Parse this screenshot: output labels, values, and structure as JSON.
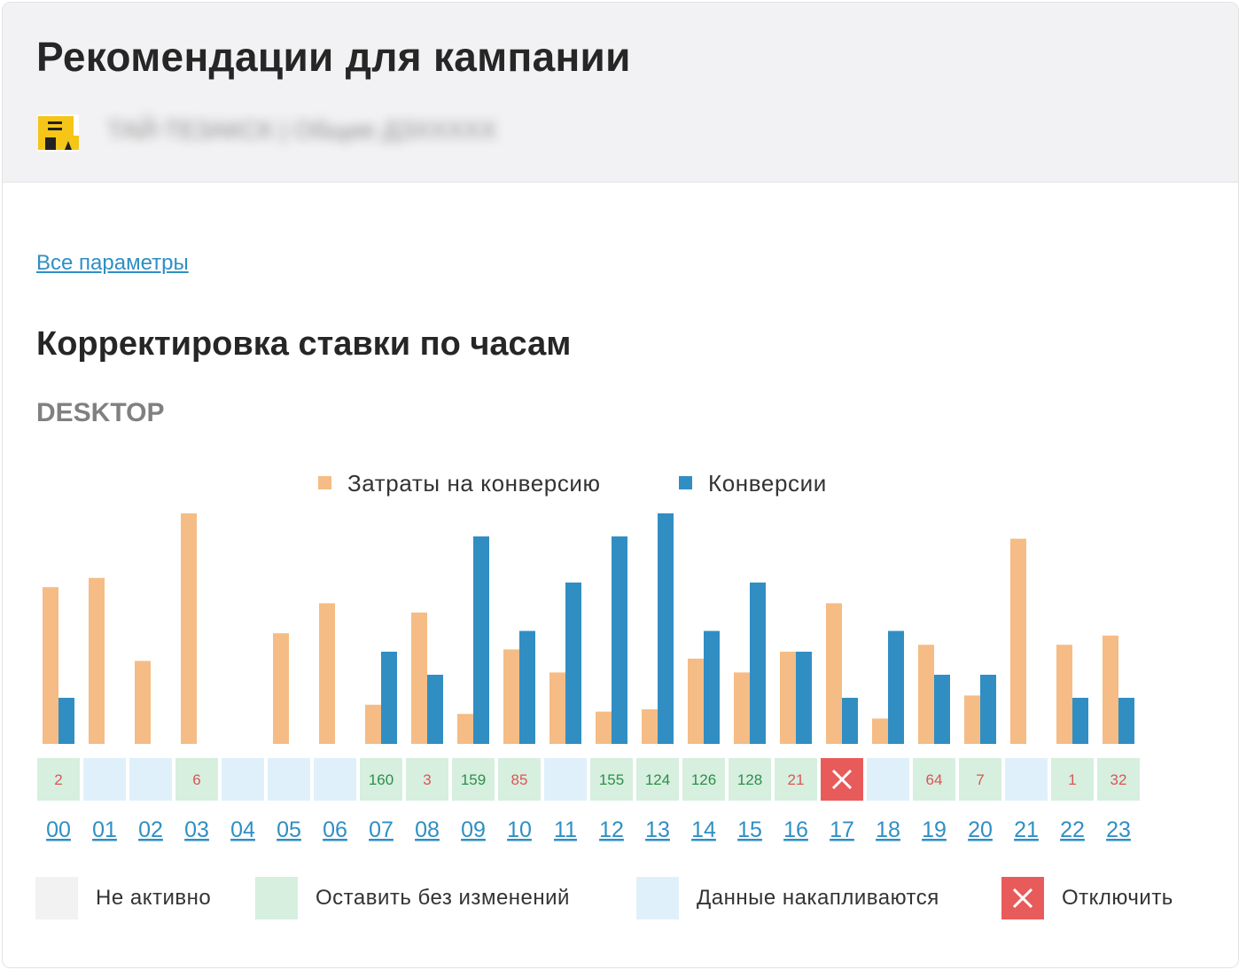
{
  "header": {
    "title": "Рекомендации для кампании",
    "account_name": "ТАЙ-ТЕЗАКСК | Общие ДЗХХХХХ",
    "logo_icon": "campaign-logo-icon"
  },
  "links": {
    "all_params": "Все параметры"
  },
  "section": {
    "title": "Корректировка ставки по часам",
    "device": "DESKTOP"
  },
  "colors": {
    "cost": "#f5bc85",
    "conversions": "#318ec3",
    "cell_green": "#d6efdf",
    "cell_blue": "#e0f0fb",
    "cell_gray": "#f2f2f2",
    "cell_red": "#e85b5b",
    "text_green": "#2c8f4a",
    "text_red": "#de5454",
    "link": "#2f8fc4"
  },
  "chart_data": {
    "type": "bar",
    "legend_placement": "top-center",
    "grid": false,
    "categories": [
      "00",
      "01",
      "02",
      "03",
      "04",
      "05",
      "06",
      "07",
      "08",
      "09",
      "10",
      "11",
      "12",
      "13",
      "14",
      "15",
      "16",
      "17",
      "18",
      "19",
      "20",
      "21",
      "22",
      "23"
    ],
    "ylim": [
      0,
      100
    ],
    "series": [
      {
        "name": "Затраты на конверсию",
        "color": "#f5bc85",
        "values": [
          68,
          72,
          36,
          100,
          0,
          48,
          61,
          17,
          57,
          13,
          41,
          31,
          14,
          15,
          37,
          31,
          40,
          61,
          11,
          43,
          21,
          89,
          43,
          47
        ]
      },
      {
        "name": "Конверсии",
        "color": "#318ec3",
        "values": [
          20,
          0,
          0,
          0,
          0,
          0,
          0,
          40,
          30,
          90,
          49,
          70,
          90,
          100,
          49,
          70,
          40,
          20,
          49,
          30,
          30,
          0,
          20,
          20
        ]
      }
    ],
    "cells": [
      {
        "state": "green",
        "value": "2",
        "value_color": "red"
      },
      {
        "state": "blue",
        "value": ""
      },
      {
        "state": "blue",
        "value": ""
      },
      {
        "state": "green",
        "value": "6",
        "value_color": "red"
      },
      {
        "state": "blue",
        "value": ""
      },
      {
        "state": "blue",
        "value": ""
      },
      {
        "state": "blue",
        "value": ""
      },
      {
        "state": "green",
        "value": "160",
        "value_color": "green"
      },
      {
        "state": "green",
        "value": "3",
        "value_color": "red"
      },
      {
        "state": "green",
        "value": "159",
        "value_color": "green"
      },
      {
        "state": "green",
        "value": "85",
        "value_color": "red"
      },
      {
        "state": "blue",
        "value": ""
      },
      {
        "state": "green",
        "value": "155",
        "value_color": "green"
      },
      {
        "state": "green",
        "value": "124",
        "value_color": "green"
      },
      {
        "state": "green",
        "value": "126",
        "value_color": "green"
      },
      {
        "state": "green",
        "value": "128",
        "value_color": "green"
      },
      {
        "state": "green",
        "value": "21",
        "value_color": "red"
      },
      {
        "state": "red",
        "value": ""
      },
      {
        "state": "blue",
        "value": ""
      },
      {
        "state": "green",
        "value": "64",
        "value_color": "red"
      },
      {
        "state": "green",
        "value": "7",
        "value_color": "red"
      },
      {
        "state": "blue",
        "value": ""
      },
      {
        "state": "green",
        "value": "1",
        "value_color": "red"
      },
      {
        "state": "green",
        "value": "32",
        "value_color": "red"
      }
    ]
  },
  "status_legend": [
    {
      "state": "gray",
      "label": "Не активно"
    },
    {
      "state": "green",
      "label": "Оставить без изменений"
    },
    {
      "state": "blue",
      "label": "Данные накапливаются"
    },
    {
      "state": "red",
      "label": "Отключить",
      "icon": "close-icon"
    }
  ]
}
